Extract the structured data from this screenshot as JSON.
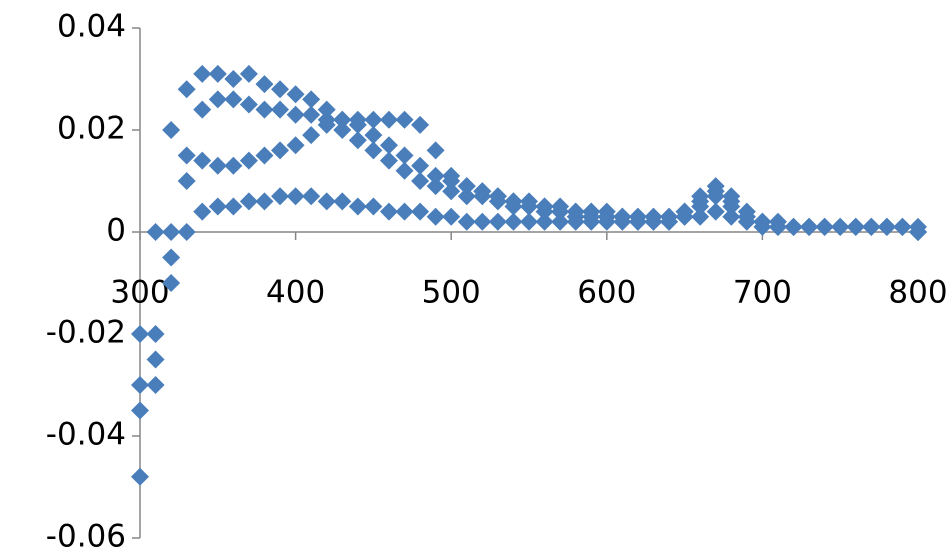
{
  "chart_data": {
    "type": "scatter",
    "x": [
      300,
      310,
      320,
      330,
      340,
      350,
      360,
      370,
      380,
      390,
      400,
      410,
      420,
      430,
      440,
      450,
      460,
      470,
      480,
      490,
      500,
      510,
      520,
      530,
      540,
      550,
      560,
      570,
      580,
      590,
      600,
      610,
      620,
      630,
      640,
      650,
      660,
      670,
      680,
      690,
      700,
      710,
      720,
      730,
      740,
      750,
      760,
      770,
      780,
      790,
      800
    ],
    "series": [
      {
        "color": "#4a7ebb",
        "values": [
          -0.02,
          0,
          0.02,
          0.028,
          0.031,
          0.031,
          0.03,
          0.031,
          0.029,
          0.028,
          0.027,
          0.026,
          0.024,
          0.022,
          0.021,
          0.019,
          0.017,
          0.015,
          0.013,
          0.011,
          0.01,
          0.009,
          0.008,
          0.007,
          0.006,
          0.006,
          0.005,
          0.005,
          0.004,
          0.004,
          0.004,
          0.003,
          0.003,
          0.003,
          0.003,
          0.004,
          0.007,
          0.009,
          0.007,
          0.004,
          0.002,
          0.002,
          0.001,
          0.001,
          0.001,
          0.001,
          0.001,
          0.001,
          0.001,
          0.001,
          0
        ]
      },
      {
        "color": "#4a7ebb",
        "values": [
          -0.048,
          -0.03,
          -0.005,
          0.015,
          0.024,
          0.026,
          0.026,
          0.025,
          0.024,
          0.024,
          0.023,
          0.023,
          0.022,
          0.022,
          0.022,
          0.022,
          0.022,
          0.022,
          0.021,
          0.016,
          0.011,
          0.009,
          0.008,
          0.007,
          0.006,
          0.005,
          0.005,
          0.004,
          0.004,
          0.004,
          0.003,
          0.003,
          0.003,
          0.003,
          0.003,
          0.004,
          0.006,
          0.008,
          0.006,
          0.003,
          0.002,
          0.001,
          0.001,
          0.001,
          0.001,
          0.001,
          0.001,
          0.001,
          0.001,
          0.001,
          0.001
        ]
      },
      {
        "color": "#4a7ebb",
        "values": [
          -0.035,
          -0.02,
          0,
          0.01,
          0.014,
          0.013,
          0.013,
          0.014,
          0.015,
          0.016,
          0.017,
          0.019,
          0.021,
          0.02,
          0.018,
          0.016,
          0.014,
          0.012,
          0.01,
          0.009,
          0.008,
          0.007,
          0.007,
          0.006,
          0.005,
          0.005,
          0.004,
          0.004,
          0.003,
          0.003,
          0.003,
          0.003,
          0.002,
          0.002,
          0.002,
          0.003,
          0.005,
          0.007,
          0.005,
          0.003,
          0.002,
          0.001,
          0.001,
          0.001,
          0.001,
          0.001,
          0.001,
          0.001,
          0.001,
          0.001,
          0
        ]
      },
      {
        "color": "#4a7ebb",
        "values": [
          -0.03,
          -0.025,
          -0.01,
          0,
          0.004,
          0.005,
          0.005,
          0.006,
          0.006,
          0.007,
          0.007,
          0.007,
          0.006,
          0.006,
          0.005,
          0.005,
          0.004,
          0.004,
          0.004,
          0.003,
          0.003,
          0.002,
          0.002,
          0.002,
          0.002,
          0.002,
          0.002,
          0.002,
          0.002,
          0.002,
          0.002,
          0.002,
          0.002,
          0.002,
          0.002,
          0.003,
          0.003,
          0.004,
          0.003,
          0.002,
          0.001,
          0.001,
          0.001,
          0.001,
          0.001,
          0.001,
          0.001,
          0.001,
          0.001,
          0.001,
          0
        ]
      }
    ],
    "xlim": [
      300,
      800
    ],
    "xticks": [
      300,
      400,
      500,
      600,
      700,
      800
    ],
    "ylim": [
      -0.06,
      0.04
    ],
    "yticks": [
      -0.06,
      -0.04,
      -0.02,
      0,
      0.02,
      0.04
    ]
  }
}
